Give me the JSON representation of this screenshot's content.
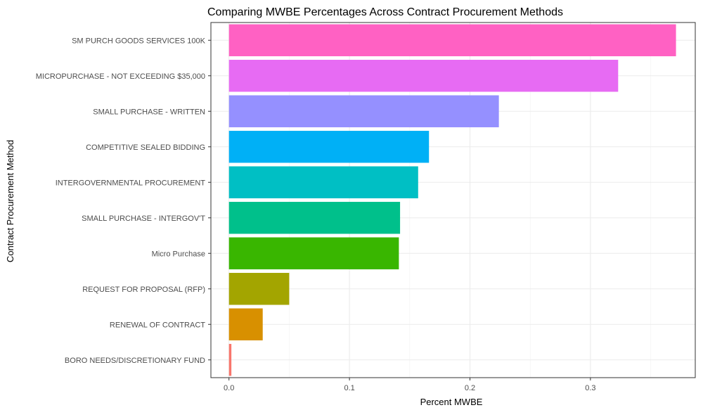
{
  "chart_data": {
    "type": "bar",
    "orientation": "horizontal",
    "title": "Comparing MWBE Percentages Across Contract Procurement Methods",
    "xlabel": "Percent MWBE",
    "ylabel": "Contract Procurement Method",
    "xlim": [
      -0.015,
      0.387
    ],
    "xticks": [
      "0.0",
      "0.1",
      "0.2",
      "0.3"
    ],
    "xtick_values": [
      0.0,
      0.1,
      0.2,
      0.3
    ],
    "grid": true,
    "legend": "none",
    "categories": [
      "SM PURCH GOODS SERVICES 100K",
      "MICROPURCHASE - NOT EXCEEDING $35,000",
      "SMALL PURCHASE - WRITTEN",
      "COMPETITIVE SEALED BIDDING",
      "INTERGOVERNMENTAL PROCUREMENT",
      "SMALL PURCHASE - INTERGOV'T",
      "Micro Purchase",
      "REQUEST FOR  PROPOSAL (RFP)",
      "RENEWAL OF CONTRACT",
      "BORO NEEDS/DISCRETIONARY FUND"
    ],
    "values": [
      0.371,
      0.323,
      0.224,
      0.166,
      0.157,
      0.142,
      0.141,
      0.05,
      0.028,
      0.002
    ],
    "colors": [
      "#FF61C3",
      "#E76BF3",
      "#9590FF",
      "#00B0F6",
      "#00BFC4",
      "#00C08B",
      "#39B600",
      "#A3A500",
      "#D89000",
      "#F8766D"
    ]
  }
}
